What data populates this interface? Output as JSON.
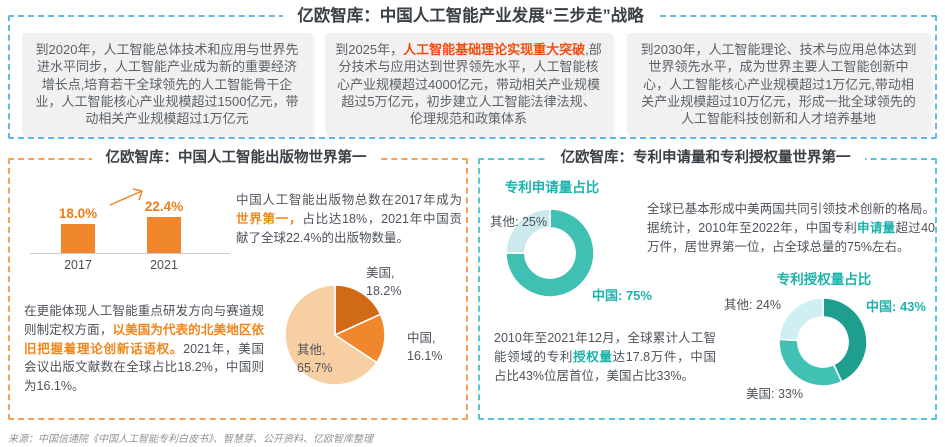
{
  "page": {
    "source_note": "来源：中国信通院《中国人工智能专利白皮书》、智慧芽、公开资料、亿欧智库整理"
  },
  "strategy_section": {
    "title": "亿欧智库：中国人工智能产业发展“三步走”战略",
    "boxes": [
      {
        "pre": "到2020年，人工智能总体技术和应用与世界先进水平同步，人工智能产业成为新的重要经济增长点,培育若干全球领先的人工智能骨干企业，人工智能核心产业规模超过1500亿元，带动相关产业规模超过1万亿元",
        "highlight": "",
        "post": ""
      },
      {
        "pre": "到2025年，",
        "highlight": "人工智能基础理论实现重大突破",
        "post": ",部分技术与应用达到世界领先水平，人工智能核心产业规模超过4000亿元，带动相关产业规模超过5万亿元，初步建立人工智能法律法规、伦理规范和政策体系"
      },
      {
        "pre": "到2030年，人工智能理论、技术与应用总体达到世界领先水平，成为世界主要人工智能创新中心，人工智能核心产业规模超过1万亿元,带动相关产业规模超过10万亿元，形成一批全球领先的人工智能科技创新和人才培养基地",
        "highlight": "",
        "post": ""
      }
    ]
  },
  "publications_section": {
    "title": "亿欧智库：中国人工智能出版物世界第一",
    "para1": {
      "pre": "中国人工智能出版物总数在2017年成为",
      "highlight": "世界第一，",
      "post": "占比达18%，2021年中国贡献了全球22.4%的出版物数量。"
    },
    "para2": {
      "pre": "在更能体现人工智能重点研发方向与赛道规则制定权方面，",
      "highlight": "以美国为代表的北美地区依旧把握着理论创新话语权。",
      "post": "2021年，美国会议出版文献数在全球占比18.2%，中国则为16.1%。"
    }
  },
  "patents_section": {
    "title": "亿欧智库：专利申请量和专利授权量世界第一",
    "para1": {
      "pre": "全球已基本形成中美两国共同引领技术创新的格局。据统计，2010年至2022年，中国专利",
      "highlight": "申请量",
      "post": "超过40万件，居世界第一位，占全球总量的75%左右。"
    },
    "para2": {
      "pre": "2010年至2021年12月，全球累计人工智能领域的专利",
      "highlight": "授权量",
      "post": "达17.8万件，中国占比43%位居首位，美国占比33%。"
    }
  },
  "chart_data": [
    {
      "id": "china-ai-publications-share-bar",
      "type": "bar",
      "title": "",
      "categories": [
        "2017",
        "2021"
      ],
      "values": [
        18.0,
        22.4
      ],
      "value_labels": [
        "18.0%",
        "22.4%"
      ],
      "bar_color": "#f0872c",
      "ylim": [
        0,
        25
      ],
      "grid": false
    },
    {
      "id": "publications-share-by-country-pie",
      "type": "pie",
      "title": "",
      "slices": [
        {
          "label": "美国",
          "value": 18.2,
          "callout_line1": "美国,",
          "callout_line2": "18.2%",
          "color": "#d06a16"
        },
        {
          "label": "中国",
          "value": 16.1,
          "callout_line1": "中国,",
          "callout_line2": "16.1%",
          "color": "#f0872c"
        },
        {
          "label": "其他",
          "value": 65.7,
          "callout_line1": "其他,",
          "callout_line2": "65.7%",
          "color": "#f8cfa2"
        }
      ],
      "start_angle_deg": 0,
      "inner_ratio": 0
    },
    {
      "id": "patent-applications-share-donut",
      "type": "donut",
      "title": "专利申请量占比",
      "slices": [
        {
          "label": "中国",
          "value": 75,
          "callout": "中国: 75%",
          "color": "#3fc0b2"
        },
        {
          "label": "其他",
          "value": 25,
          "callout": "其他: 25%",
          "color": "#cceaee"
        }
      ],
      "start_angle_deg": 0,
      "inner_ratio": 0.57
    },
    {
      "id": "patent-grants-share-donut",
      "type": "donut",
      "title": "专利授权量占比",
      "slices": [
        {
          "label": "中国",
          "value": 43,
          "callout": "中国: 43%",
          "color": "#1d9e8f"
        },
        {
          "label": "美国",
          "value": 33,
          "callout": "美国: 33%",
          "color": "#41c0b4"
        },
        {
          "label": "其他",
          "value": 24,
          "callout": "其他: 24%",
          "color": "#cfeff2"
        }
      ],
      "start_angle_deg": 0,
      "inner_ratio": 0.57
    }
  ]
}
